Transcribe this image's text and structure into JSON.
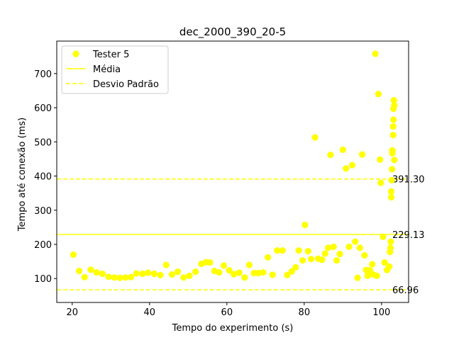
{
  "chart_data": {
    "type": "scatter",
    "title": "dec_2000_390_20-5",
    "xlabel": "Tempo do experimento (s)",
    "ylabel": "Tempo até conexão (ms)",
    "xlim": [
      16,
      107
    ],
    "ylim": [
      30,
      795
    ],
    "xticks": [
      20,
      40,
      60,
      80,
      100
    ],
    "yticks": [
      100,
      200,
      300,
      400,
      500,
      600,
      700
    ],
    "grid": false,
    "legend_position": "top-left",
    "colors": {
      "points": "#ffff00",
      "mean_line": "#ffff00",
      "std_line": "#ffff00"
    },
    "series": [
      {
        "name": "Tester 5",
        "points": [
          [
            20.3,
            170
          ],
          [
            21.8,
            122
          ],
          [
            23.2,
            104
          ],
          [
            24.8,
            126
          ],
          [
            26.3,
            118
          ],
          [
            27.8,
            114
          ],
          [
            29.4,
            105
          ],
          [
            30.9,
            103
          ],
          [
            32.3,
            102
          ],
          [
            33.8,
            103
          ],
          [
            35.2,
            104
          ],
          [
            36.6,
            115
          ],
          [
            38.2,
            114
          ],
          [
            39.6,
            117
          ],
          [
            41.2,
            114
          ],
          [
            42.8,
            110
          ],
          [
            44.3,
            140
          ],
          [
            45.8,
            112
          ],
          [
            47.3,
            120
          ],
          [
            48.8,
            103
          ],
          [
            50.3,
            108
          ],
          [
            51.9,
            120
          ],
          [
            53.4,
            143
          ],
          [
            54.6,
            148
          ],
          [
            55.6,
            147
          ],
          [
            56.8,
            122
          ],
          [
            58.0,
            118
          ],
          [
            59.2,
            138
          ],
          [
            60.6,
            124
          ],
          [
            61.8,
            113
          ],
          [
            63.2,
            117
          ],
          [
            64.6,
            103
          ],
          [
            65.8,
            140
          ],
          [
            67.0,
            116
          ],
          [
            68.2,
            116
          ],
          [
            69.4,
            118
          ],
          [
            70.6,
            162
          ],
          [
            71.8,
            111
          ],
          [
            73.0,
            182
          ],
          [
            74.4,
            182
          ],
          [
            75.6,
            110
          ],
          [
            76.8,
            121
          ],
          [
            77.8,
            133
          ],
          [
            78.6,
            182
          ],
          [
            79.6,
            153
          ],
          [
            80.2,
            257
          ],
          [
            81.0,
            180
          ],
          [
            81.8,
            157
          ],
          [
            82.8,
            513
          ],
          [
            83.6,
            158
          ],
          [
            84.6,
            155
          ],
          [
            85.4,
            173
          ],
          [
            86.2,
            190
          ],
          [
            86.8,
            462
          ],
          [
            87.6,
            193
          ],
          [
            88.4,
            153
          ],
          [
            89.2,
            172
          ],
          [
            90.0,
            477
          ],
          [
            90.8,
            422
          ],
          [
            91.6,
            193
          ],
          [
            92.4,
            432
          ],
          [
            93.2,
            208
          ],
          [
            93.8,
            102
          ],
          [
            94.4,
            190
          ],
          [
            95.0,
            463
          ],
          [
            95.6,
            168
          ],
          [
            96.0,
            125
          ],
          [
            96.4,
            108
          ],
          [
            97.0,
            124
          ],
          [
            97.6,
            142
          ],
          [
            97.8,
            112
          ],
          [
            98.4,
            758
          ],
          [
            98.8,
            108
          ],
          [
            99.2,
            640
          ],
          [
            99.6,
            448
          ],
          [
            99.8,
            380
          ],
          [
            100.4,
            222
          ],
          [
            100.8,
            147
          ],
          [
            101.4,
            125
          ],
          [
            102.0,
            135
          ],
          [
            102.2,
            178
          ],
          [
            102.3,
            190
          ],
          [
            102.4,
            208
          ],
          [
            102.5,
            338
          ],
          [
            102.5,
            355
          ],
          [
            102.6,
            388
          ],
          [
            102.7,
            420
          ],
          [
            102.8,
            467
          ],
          [
            102.8,
            475
          ],
          [
            103.0,
            520
          ],
          [
            103.0,
            545
          ],
          [
            103.1,
            565
          ],
          [
            103.1,
            597
          ],
          [
            103.2,
            622
          ],
          [
            103.3,
            607
          ],
          [
            103.3,
            447
          ]
        ]
      }
    ],
    "reference_lines": [
      {
        "name": "Média",
        "style": "solid",
        "y": 229.13,
        "label": "229.13"
      },
      {
        "name": "Desvio Padrão",
        "style": "dashed",
        "y": 391.3,
        "label": "391.30"
      },
      {
        "name": "Desvio Padrão",
        "style": "dashed",
        "y": 66.96,
        "label": "66.96"
      }
    ],
    "legend": [
      {
        "label": "Tester 5",
        "kind": "marker"
      },
      {
        "label": "Média",
        "kind": "solid-line"
      },
      {
        "label": "Desvio Padrão",
        "kind": "dashed-line"
      }
    ]
  }
}
